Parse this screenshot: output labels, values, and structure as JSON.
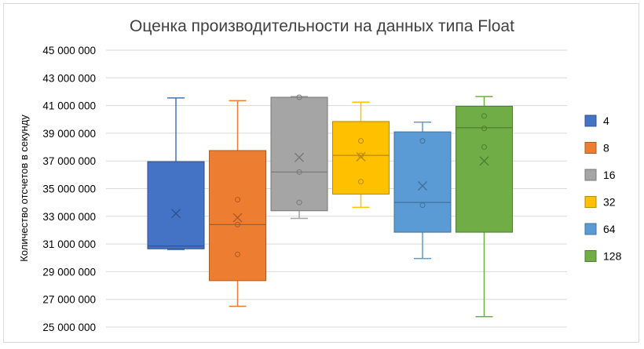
{
  "chart_data": {
    "type": "boxplot",
    "title": "Оценка производительности на данных типа Float",
    "xlabel": "",
    "ylabel": "Количество отсчетов в секунду",
    "ylim": [
      25000000,
      45000000
    ],
    "yticks": [
      25000000,
      27000000,
      29000000,
      31000000,
      33000000,
      35000000,
      37000000,
      39000000,
      41000000,
      43000000,
      45000000
    ],
    "ytick_labels": [
      "25 000 000",
      "27 000 000",
      "29 000 000",
      "31 000 000",
      "33 000 000",
      "35 000 000",
      "37 000 000",
      "39 000 000",
      "41 000 000",
      "43 000 000",
      "45 000 000"
    ],
    "grid": true,
    "legend_position": "right",
    "series": [
      {
        "name": "4",
        "color": "#4472c4",
        "min": 30600000,
        "q1": 30650000,
        "median": 30850000,
        "q3": 36950000,
        "max": 41550000,
        "mean": 33200000,
        "points": []
      },
      {
        "name": "8",
        "color": "#ed7d31",
        "min": 26500000,
        "q1": 28350000,
        "median": 32400000,
        "q3": 37750000,
        "max": 41350000,
        "mean": 32900000,
        "points": [
          34200000,
          32400000,
          30250000
        ]
      },
      {
        "name": "16",
        "color": "#a5a5a5",
        "min": 32850000,
        "q1": 33400000,
        "median": 36200000,
        "q3": 41600000,
        "max": 41650000,
        "mean": 37250000,
        "points": [
          41600000,
          36200000,
          34000000
        ]
      },
      {
        "name": "32",
        "color": "#ffc000",
        "min": 33650000,
        "q1": 34600000,
        "median": 37400000,
        "q3": 39850000,
        "max": 41250000,
        "mean": 37300000,
        "points": [
          38450000,
          37400000,
          35500000
        ]
      },
      {
        "name": "64",
        "color": "#5b9bd5",
        "min": 29950000,
        "q1": 31850000,
        "median": 34000000,
        "q3": 39100000,
        "max": 39800000,
        "mean": 35200000,
        "points": [
          38450000,
          33800000
        ]
      },
      {
        "name": "128",
        "color": "#70ad47",
        "min": 25750000,
        "q1": 31850000,
        "median": 39400000,
        "q3": 40950000,
        "max": 41650000,
        "mean": 37000000,
        "points": [
          40250000,
          39350000,
          38000000
        ]
      }
    ]
  }
}
